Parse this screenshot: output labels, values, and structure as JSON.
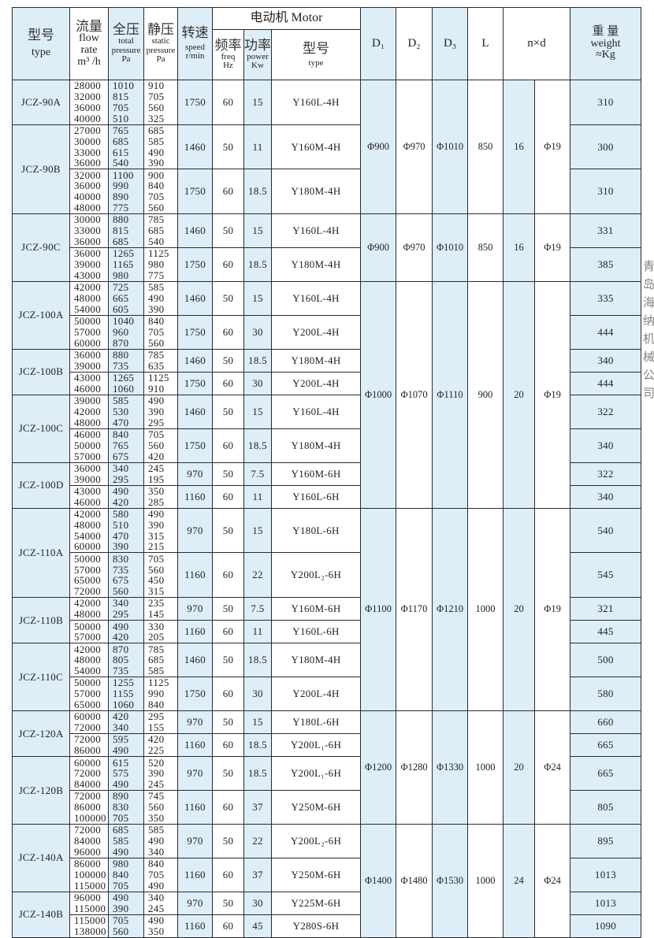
{
  "header": {
    "type_zh": "型号",
    "type_en": "type",
    "flow_zh": "流量",
    "flow_en1": "flow",
    "flow_en2": "rate",
    "flow_unit": "m³ /h",
    "total_zh": "全压",
    "total_en1": "total",
    "total_en2": "pressure",
    "total_unit": "Pa",
    "static_zh": "静压",
    "static_en1": "static",
    "static_en2": "pressure",
    "static_unit": "Pa",
    "speed_zh": "转速",
    "speed_en": "speed",
    "speed_unit": "r/min",
    "motor": "电动机 Motor",
    "freq_zh": "频率",
    "freq_en": "freq",
    "freq_unit": "Hz",
    "power_zh": "功率",
    "power_en": "power",
    "power_unit": "Kw",
    "mtype_zh": "型号",
    "mtype_en": "type",
    "d1": "D₁",
    "d2": "D₂",
    "d3": "D₃",
    "L": "L",
    "nxd": "n×d",
    "weight_zh": "重 量",
    "weight_en": "weight",
    "weight_unit": "≈Kg"
  },
  "shade_color": "#ddeef8",
  "watermark": "青岛海纳机械公司",
  "models": [
    {
      "type": "JCZ-90A",
      "motors": [
        {
          "flow": [
            "28000",
            "32000",
            "36000",
            "40000"
          ],
          "total": [
            "1010",
            "815",
            "705",
            "510"
          ],
          "static": [
            "910",
            "705",
            "560",
            "325"
          ],
          "speed": "1750",
          "freq": "60",
          "power": "15",
          "motor": "Y160L-4H",
          "weight": "310"
        }
      ]
    },
    {
      "type": "JCZ-90B",
      "motors": [
        {
          "flow": [
            "27000",
            "30000",
            "33000",
            "36000"
          ],
          "total": [
            "765",
            "685",
            "615",
            "540"
          ],
          "static": [
            "685",
            "585",
            "490",
            "390"
          ],
          "speed": "1460",
          "freq": "50",
          "power": "11",
          "motor": "Y160M-4H",
          "weight": "300"
        },
        {
          "flow": [
            "32000",
            "36000",
            "40000",
            "48000"
          ],
          "total": [
            "1100",
            "990",
            "890",
            "775"
          ],
          "static": [
            "900",
            "840",
            "705",
            "560"
          ],
          "speed": "1750",
          "freq": "60",
          "power": "18.5",
          "motor": "Y180M-4H",
          "weight": "310"
        }
      ]
    },
    {
      "type": "JCZ-90C",
      "motors": [
        {
          "flow": [
            "30000",
            "33000",
            "36000"
          ],
          "total": [
            "880",
            "815",
            "685"
          ],
          "static": [
            "785",
            "685",
            "540"
          ],
          "speed": "1460",
          "freq": "50",
          "power": "15",
          "motor": "Y160L-4H",
          "weight": "331"
        },
        {
          "flow": [
            "36000",
            "39000",
            "43000"
          ],
          "total": [
            "1265",
            "1165",
            "980"
          ],
          "static": [
            "1125",
            "980",
            "775"
          ],
          "speed": "1750",
          "freq": "60",
          "power": "18.5",
          "motor": "Y180M-4H",
          "weight": "385"
        }
      ]
    },
    {
      "type": "JCZ-100A",
      "motors": [
        {
          "flow": [
            "42000",
            "48000",
            "54000"
          ],
          "total": [
            "725",
            "665",
            "605"
          ],
          "static": [
            "585",
            "490",
            "390"
          ],
          "speed": "1460",
          "freq": "50",
          "power": "15",
          "motor": "Y160L-4H",
          "weight": "335"
        },
        {
          "flow": [
            "50000",
            "57000",
            "60000"
          ],
          "total": [
            "1040",
            "960",
            "870"
          ],
          "static": [
            "840",
            "705",
            "560"
          ],
          "speed": "1750",
          "freq": "60",
          "power": "30",
          "motor": "Y200L-4H",
          "weight": "444"
        }
      ]
    },
    {
      "type": "JCZ-100B",
      "motors": [
        {
          "flow": [
            "36000",
            "39000"
          ],
          "total": [
            "880",
            "735"
          ],
          "static": [
            "785",
            "635"
          ],
          "speed": "1460",
          "freq": "50",
          "power": "18.5",
          "motor": "Y180M-4H",
          "weight": "340"
        },
        {
          "flow": [
            "43000",
            "46000"
          ],
          "total": [
            "1265",
            "1060"
          ],
          "static": [
            "1125",
            "910"
          ],
          "speed": "1750",
          "freq": "60",
          "power": "30",
          "motor": "Y200L-4H",
          "weight": "444"
        }
      ]
    },
    {
      "type": "JCZ-100C",
      "motors": [
        {
          "flow": [
            "39000",
            "42000",
            "48000"
          ],
          "total": [
            "585",
            "530",
            "470"
          ],
          "static": [
            "490",
            "390",
            "295"
          ],
          "speed": "1460",
          "freq": "50",
          "power": "15",
          "motor": "Y160L-4H",
          "weight": "322"
        },
        {
          "flow": [
            "46000",
            "50000",
            "57000"
          ],
          "total": [
            "840",
            "765",
            "675"
          ],
          "static": [
            "705",
            "560",
            "420"
          ],
          "speed": "1750",
          "freq": "60",
          "power": "18.5",
          "motor": "Y180M-4H",
          "weight": "340"
        }
      ]
    },
    {
      "type": "JCZ-100D",
      "motors": [
        {
          "flow": [
            "36000",
            "39000"
          ],
          "total": [
            "340",
            "295"
          ],
          "static": [
            "245",
            "195"
          ],
          "speed": "970",
          "freq": "50",
          "power": "7.5",
          "motor": "Y160M-6H",
          "weight": "322"
        },
        {
          "flow": [
            "43000",
            "46000"
          ],
          "total": [
            "490",
            "420"
          ],
          "static": [
            "350",
            "285"
          ],
          "speed": "1160",
          "freq": "60",
          "power": "11",
          "motor": "Y160L-6H",
          "weight": "340"
        }
      ]
    },
    {
      "type": "JCZ-110A",
      "motors": [
        {
          "flow": [
            "42000",
            "48000",
            "54000",
            "60000"
          ],
          "total": [
            "580",
            "510",
            "470",
            "390"
          ],
          "static": [
            "490",
            "390",
            "315",
            "215"
          ],
          "speed": "970",
          "freq": "50",
          "power": "15",
          "motor": "Y180L-6H",
          "weight": "540"
        },
        {
          "flow": [
            "50000",
            "57000",
            "65000",
            "72000"
          ],
          "total": [
            "830",
            "735",
            "675",
            "560"
          ],
          "static": [
            "705",
            "560",
            "450",
            "315"
          ],
          "speed": "1160",
          "freq": "60",
          "power": "22",
          "motor": "Y200L₂-6H",
          "weight": "545"
        }
      ]
    },
    {
      "type": "JCZ-110B",
      "motors": [
        {
          "flow": [
            "42000",
            "48000"
          ],
          "total": [
            "340",
            "295"
          ],
          "static": [
            "235",
            "145"
          ],
          "speed": "970",
          "freq": "50",
          "power": "7.5",
          "motor": "Y160M-6H",
          "weight": "321"
        },
        {
          "flow": [
            "50000",
            "57000"
          ],
          "total": [
            "490",
            "420"
          ],
          "static": [
            "330",
            "205"
          ],
          "speed": "1160",
          "freq": "60",
          "power": "11",
          "motor": "Y160L-6H",
          "weight": "445"
        }
      ]
    },
    {
      "type": "JCZ-110C",
      "motors": [
        {
          "flow": [
            "42000",
            "48000",
            "54000"
          ],
          "total": [
            "870",
            "805",
            "735"
          ],
          "static": [
            "785",
            "685",
            "585"
          ],
          "speed": "1460",
          "freq": "50",
          "power": "18.5",
          "motor": "Y180M-4H",
          "weight": "500"
        },
        {
          "flow": [
            "50000",
            "57000",
            "65000"
          ],
          "total": [
            "1255",
            "1155",
            "1060"
          ],
          "static": [
            "1125",
            "990",
            "840"
          ],
          "speed": "1750",
          "freq": "60",
          "power": "30",
          "motor": "Y200L-4H",
          "weight": "580"
        }
      ]
    },
    {
      "type": "JCZ-120A",
      "motors": [
        {
          "flow": [
            "60000",
            "72000"
          ],
          "total": [
            "420",
            "340"
          ],
          "static": [
            "295",
            "155"
          ],
          "speed": "970",
          "freq": "50",
          "power": "15",
          "motor": "Y180L-6H",
          "weight": "660"
        },
        {
          "flow": [
            "72000",
            "86000"
          ],
          "total": [
            "595",
            "490"
          ],
          "static": [
            "420",
            "225"
          ],
          "speed": "1160",
          "freq": "60",
          "power": "18.5",
          "motor": "Y200L₁-6H",
          "weight": "665"
        }
      ]
    },
    {
      "type": "JCZ-120B",
      "motors": [
        {
          "flow": [
            "60000",
            "72000",
            "84000"
          ],
          "total": [
            "615",
            "575",
            "490"
          ],
          "static": [
            "520",
            "390",
            "245"
          ],
          "speed": "970",
          "freq": "50",
          "power": "18.5",
          "motor": "Y200L₁-6H",
          "weight": "665"
        },
        {
          "flow": [
            "72000",
            "86000",
            "100000"
          ],
          "total": [
            "890",
            "830",
            "705"
          ],
          "static": [
            "745",
            "560",
            "350"
          ],
          "speed": "1160",
          "freq": "60",
          "power": "37",
          "motor": "Y250M-6H",
          "weight": "805"
        }
      ]
    },
    {
      "type": "JCZ-140A",
      "motors": [
        {
          "flow": [
            "72000",
            "84000",
            "96000"
          ],
          "total": [
            "685",
            "585",
            "490"
          ],
          "static": [
            "585",
            "490",
            "340"
          ],
          "speed": "970",
          "freq": "50",
          "power": "22",
          "motor": "Y200L₂-6H",
          "weight": "895"
        },
        {
          "flow": [
            "86000",
            "100000",
            "115000"
          ],
          "total": [
            "980",
            "840",
            "705"
          ],
          "static": [
            "840",
            "705",
            "490"
          ],
          "speed": "1160",
          "freq": "60",
          "power": "37",
          "motor": "Y250M-6H",
          "weight": "1013"
        }
      ]
    },
    {
      "type": "JCZ-140B",
      "motors": [
        {
          "flow": [
            "96000",
            "115000"
          ],
          "total": [
            "490",
            "390"
          ],
          "static": [
            "340",
            "245"
          ],
          "speed": "970",
          "freq": "50",
          "power": "30",
          "motor": "Y225M-6H",
          "weight": "1013"
        },
        {
          "flow": [
            "115000",
            "138000"
          ],
          "total": [
            "705",
            "560"
          ],
          "static": [
            "490",
            "350"
          ],
          "speed": "1160",
          "freq": "60",
          "power": "45",
          "motor": "Y280S-6H",
          "weight": "1090"
        }
      ]
    }
  ],
  "dimension_groups": [
    {
      "models": [
        "JCZ-90A",
        "JCZ-90B"
      ],
      "d1": "Φ900",
      "d2": "Φ970",
      "d3": "Φ1010",
      "L": "850",
      "n": "16",
      "d": "Φ19"
    },
    {
      "models": [
        "JCZ-90C"
      ],
      "d1": "Φ900",
      "d2": "Φ970",
      "d3": "Φ1010",
      "L": "850",
      "n": "16",
      "d": "Φ19"
    },
    {
      "models": [
        "JCZ-100A",
        "JCZ-100B",
        "JCZ-100C",
        "JCZ-100D"
      ],
      "d1": "Φ1000",
      "d2": "Φ1070",
      "d3": "Φ1110",
      "L": "900",
      "n": "20",
      "d": "Φ19"
    },
    {
      "models": [
        "JCZ-110A",
        "JCZ-110B",
        "JCZ-110C"
      ],
      "d1": "Φ1100",
      "d2": "Φ1170",
      "d3": "Φ1210",
      "L": "1000",
      "n": "20",
      "d": "Φ19"
    },
    {
      "models": [
        "JCZ-120A",
        "JCZ-120B"
      ],
      "d1": "Φ1200",
      "d2": "Φ1280",
      "d3": "Φ1330",
      "L": "1000",
      "n": "20",
      "d": "Φ24"
    },
    {
      "models": [
        "JCZ-140A",
        "JCZ-140B"
      ],
      "d1": "Φ1400",
      "d2": "Φ1480",
      "d3": "Φ1530",
      "L": "1000",
      "n": "24",
      "d": "Φ24"
    }
  ]
}
